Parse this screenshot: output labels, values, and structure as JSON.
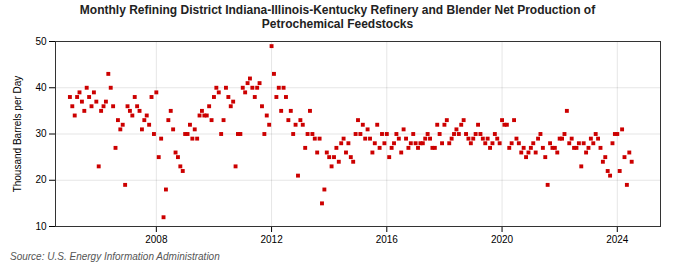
{
  "chart_data": {
    "type": "scatter",
    "title": "Monthly Refining District Indiana-Illinois-Kentucky Refinery and Blender Net Production of\nPetrochemical Feedstocks",
    "ylabel": "Thousand Barrels per Day",
    "source": "Source: U.S. Energy Information Administration",
    "color": "#cc0000",
    "marker": "square",
    "grid": true,
    "xlim": [
      2004.5,
      2025.5
    ],
    "xticks": [
      2008,
      2012,
      2016,
      2020,
      2024
    ],
    "ylim": [
      10,
      50
    ],
    "yticks": [
      10,
      20,
      30,
      40,
      50
    ],
    "x": [
      2005.0,
      2005.083,
      2005.167,
      2005.25,
      2005.333,
      2005.417,
      2005.5,
      2005.583,
      2005.667,
      2005.75,
      2005.833,
      2005.917,
      2006.0,
      2006.083,
      2006.167,
      2006.25,
      2006.333,
      2006.417,
      2006.5,
      2006.583,
      2006.667,
      2006.75,
      2006.833,
      2006.917,
      2007.0,
      2007.083,
      2007.167,
      2007.25,
      2007.333,
      2007.417,
      2007.5,
      2007.583,
      2007.667,
      2007.75,
      2007.833,
      2007.917,
      2008.0,
      2008.083,
      2008.167,
      2008.25,
      2008.333,
      2008.417,
      2008.5,
      2008.583,
      2008.667,
      2008.75,
      2008.833,
      2008.917,
      2009.0,
      2009.083,
      2009.167,
      2009.25,
      2009.333,
      2009.417,
      2009.5,
      2009.583,
      2009.667,
      2009.75,
      2009.833,
      2009.917,
      2010.0,
      2010.083,
      2010.167,
      2010.25,
      2010.333,
      2010.417,
      2010.5,
      2010.583,
      2010.667,
      2010.75,
      2010.833,
      2010.917,
      2011.0,
      2011.083,
      2011.167,
      2011.25,
      2011.333,
      2011.417,
      2011.5,
      2011.583,
      2011.667,
      2011.75,
      2011.833,
      2011.917,
      2012.0,
      2012.083,
      2012.167,
      2012.25,
      2012.333,
      2012.417,
      2012.5,
      2012.583,
      2012.667,
      2012.75,
      2012.833,
      2012.917,
      2013.0,
      2013.083,
      2013.167,
      2013.25,
      2013.333,
      2013.417,
      2013.5,
      2013.583,
      2013.667,
      2013.75,
      2013.833,
      2013.917,
      2014.0,
      2014.083,
      2014.167,
      2014.25,
      2014.333,
      2014.417,
      2014.5,
      2014.583,
      2014.667,
      2014.75,
      2014.833,
      2014.917,
      2015.0,
      2015.083,
      2015.167,
      2015.25,
      2015.333,
      2015.417,
      2015.5,
      2015.583,
      2015.667,
      2015.75,
      2015.833,
      2015.917,
      2016.0,
      2016.083,
      2016.167,
      2016.25,
      2016.333,
      2016.417,
      2016.5,
      2016.583,
      2016.667,
      2016.75,
      2016.833,
      2016.917,
      2017.0,
      2017.083,
      2017.167,
      2017.25,
      2017.333,
      2017.417,
      2017.5,
      2017.583,
      2017.667,
      2017.75,
      2017.833,
      2017.917,
      2018.0,
      2018.083,
      2018.167,
      2018.25,
      2018.333,
      2018.417,
      2018.5,
      2018.583,
      2018.667,
      2018.75,
      2018.833,
      2018.917,
      2019.0,
      2019.083,
      2019.167,
      2019.25,
      2019.333,
      2019.417,
      2019.5,
      2019.583,
      2019.667,
      2019.75,
      2019.833,
      2019.917,
      2020.0,
      2020.083,
      2020.167,
      2020.25,
      2020.333,
      2020.417,
      2020.5,
      2020.583,
      2020.667,
      2020.75,
      2020.833,
      2020.917,
      2021.0,
      2021.083,
      2021.167,
      2021.25,
      2021.333,
      2021.417,
      2021.5,
      2021.583,
      2021.667,
      2021.75,
      2021.833,
      2021.917,
      2022.0,
      2022.083,
      2022.167,
      2022.25,
      2022.333,
      2022.417,
      2022.5,
      2022.583,
      2022.667,
      2022.75,
      2022.833,
      2022.917,
      2023.0,
      2023.083,
      2023.167,
      2023.25,
      2023.333,
      2023.417,
      2023.5,
      2023.583,
      2023.667,
      2023.75,
      2023.833,
      2023.917,
      2024.0,
      2024.083,
      2024.167,
      2024.25,
      2024.333,
      2024.417,
      2024.5
    ],
    "values": [
      38,
      36,
      34,
      38,
      39,
      37,
      35,
      40,
      38,
      36,
      39,
      37,
      23,
      35,
      36,
      37,
      43,
      40,
      36,
      27,
      33,
      31,
      32,
      19,
      36,
      35,
      34,
      38,
      36,
      35,
      31,
      33,
      34,
      32,
      38,
      30,
      39,
      25,
      29,
      12,
      18,
      33,
      35,
      31,
      26,
      25,
      23,
      22,
      30,
      30,
      32,
      29,
      31,
      29,
      34,
      35,
      34,
      34,
      36,
      33,
      38,
      40,
      39,
      30,
      33,
      40,
      38,
      36,
      37,
      23,
      30,
      30,
      40,
      39,
      41,
      42,
      40,
      38,
      40,
      41,
      36,
      30,
      34,
      32,
      49,
      43,
      38,
      40,
      35,
      40,
      38,
      33,
      35,
      30,
      32,
      21,
      33,
      32,
      27,
      30,
      35,
      30,
      29,
      26,
      29,
      15,
      18,
      26,
      25,
      23,
      25,
      27,
      24,
      28,
      29,
      26,
      28,
      25,
      24,
      30,
      33,
      30,
      32,
      29,
      31,
      29,
      26,
      28,
      32,
      27,
      30,
      28,
      30,
      25,
      27,
      28,
      30,
      29,
      26,
      31,
      29,
      27,
      28,
      30,
      28,
      27,
      28,
      28,
      29,
      30,
      29,
      27,
      27,
      32,
      30,
      28,
      32,
      33,
      28,
      29,
      30,
      31,
      30,
      32,
      33,
      30,
      29,
      28,
      29,
      30,
      32,
      30,
      29,
      28,
      29,
      27,
      28,
      30,
      29,
      28,
      33,
      32,
      32,
      27,
      28,
      33,
      29,
      28,
      26,
      27,
      25,
      26,
      27,
      28,
      26,
      29,
      30,
      27,
      25,
      19,
      28,
      27,
      27,
      26,
      29,
      29,
      30,
      35,
      28,
      29,
      27,
      27,
      28,
      23,
      28,
      26,
      27,
      29,
      28,
      30,
      29,
      27,
      24,
      25,
      22,
      21,
      28,
      30,
      30,
      22,
      31,
      25,
      19,
      26,
      24
    ]
  }
}
